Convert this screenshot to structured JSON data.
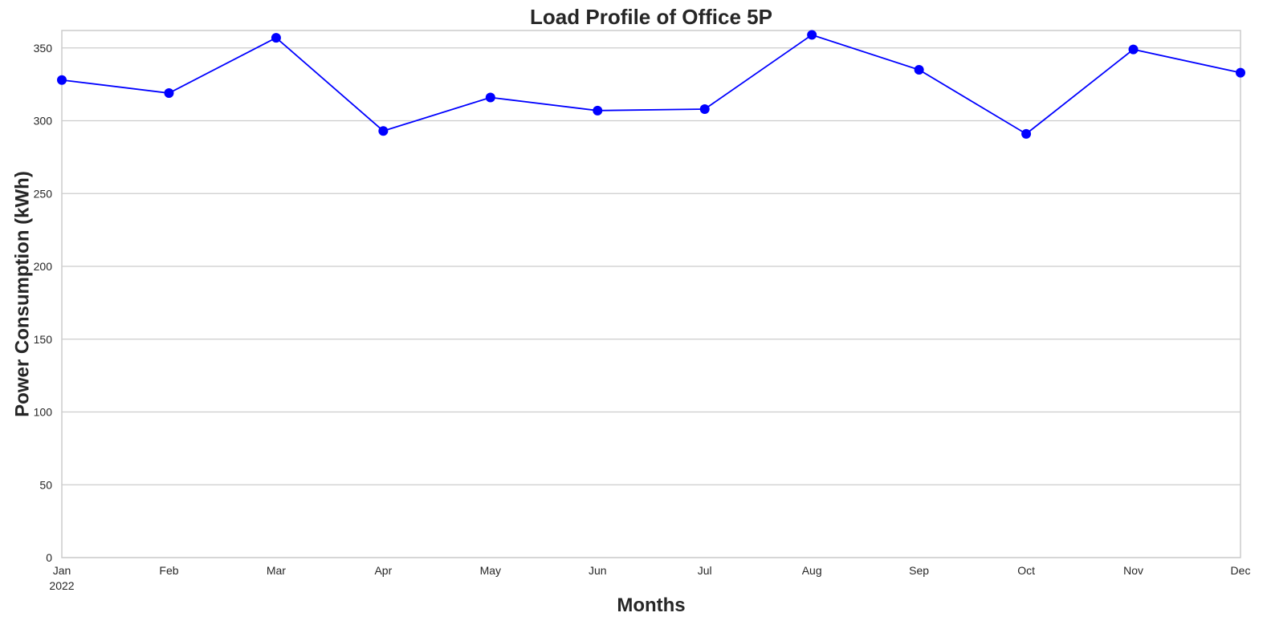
{
  "chart_data": {
    "type": "line",
    "title": "Load Profile of Office 5P",
    "xlabel": "Months",
    "ylabel": "Power Consumption (kWh)",
    "year_label": "2022",
    "categories": [
      "Jan",
      "Feb",
      "Mar",
      "Apr",
      "May",
      "Jun",
      "Jul",
      "Aug",
      "Sep",
      "Oct",
      "Nov",
      "Dec"
    ],
    "series": [
      {
        "values": [
          328,
          319,
          357,
          293,
          316,
          307,
          308,
          359,
          335,
          291,
          349,
          333
        ],
        "color": "#0000ff",
        "marker": "circle"
      }
    ],
    "ylim": [
      0,
      362
    ],
    "yticks": [
      0,
      50,
      100,
      150,
      200,
      250,
      300,
      350
    ],
    "grid": "horizontal",
    "legend": "none"
  }
}
